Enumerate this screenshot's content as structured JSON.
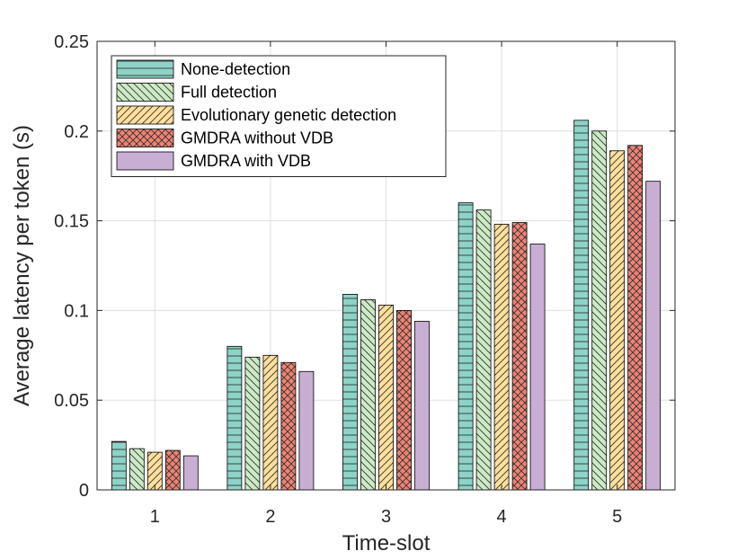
{
  "chart_data": {
    "type": "bar",
    "title": "",
    "xlabel": "Time-slot",
    "ylabel": "Average latency per token (s)",
    "categories": [
      "1",
      "2",
      "3",
      "4",
      "5"
    ],
    "ylim": [
      0,
      0.25
    ],
    "yticks": [
      0,
      0.05,
      0.1,
      0.15,
      0.2,
      0.25
    ],
    "ytick_labels": [
      "0",
      "0.05",
      "0.1",
      "0.15",
      "0.2",
      "0.25"
    ],
    "grid": true,
    "legend_position": "top-left",
    "series": [
      {
        "name": "None-detection",
        "values": [
          0.027,
          0.08,
          0.109,
          0.16,
          0.206
        ],
        "color": "#8dd3c7",
        "pattern": "horizontal"
      },
      {
        "name": "Full detection",
        "values": [
          0.023,
          0.074,
          0.106,
          0.156,
          0.2
        ],
        "color": "#ccebc5",
        "pattern": "backslash"
      },
      {
        "name": "Evolutionary genetic detection",
        "values": [
          0.021,
          0.075,
          0.103,
          0.148,
          0.189
        ],
        "color": "#fedf9b",
        "pattern": "slash"
      },
      {
        "name": "GMDRA without VDB",
        "values": [
          0.022,
          0.071,
          0.1,
          0.149,
          0.192
        ],
        "color": "#ef8373",
        "pattern": "cross"
      },
      {
        "name": "GMDRA with VDB",
        "values": [
          0.019,
          0.066,
          0.094,
          0.137,
          0.172
        ],
        "color": "#c9aed4",
        "pattern": "none"
      }
    ]
  }
}
